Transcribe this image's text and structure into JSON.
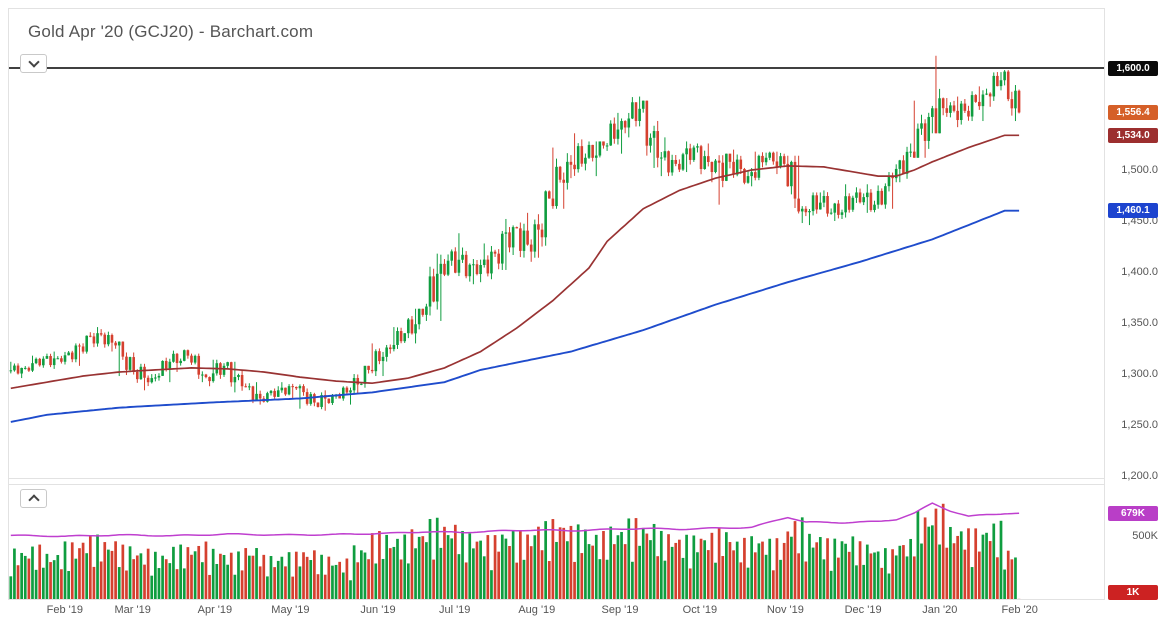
{
  "ui": {
    "title": "Gold Apr '20 (GCJ20) - Barchart.com",
    "icons": {
      "main_pane_toggle": "chevron-down",
      "volume_pane_toggle": "chevron-up"
    }
  },
  "chart_data": {
    "type": "candlestick",
    "title": "Gold Apr '20 (GCJ20) - Barchart.com",
    "symbol": "GCJ20",
    "last_price": 1556.4,
    "horizontal_line": 1600.0,
    "grid": false,
    "legend_position": "none",
    "price_axis_range": [
      1198,
      1657
    ],
    "volume_axis_range_k": [
      0,
      900
    ],
    "colors": {
      "up": "#0f9d3f",
      "down": "#d5402f",
      "horizontal_line": "#000000",
      "title_text": "#555555",
      "axis_text": "#555555"
    },
    "y_ticks": [
      {
        "label": "1,500.0",
        "value": 1500,
        "axis": "price"
      },
      {
        "label": "1,450.0",
        "value": 1450,
        "axis": "price"
      },
      {
        "label": "1,400.0",
        "value": 1400,
        "axis": "price"
      },
      {
        "label": "1,350.0",
        "value": 1350,
        "axis": "price"
      },
      {
        "label": "1,300.0",
        "value": 1300,
        "axis": "price"
      },
      {
        "label": "1,250.0",
        "value": 1250,
        "axis": "price"
      },
      {
        "label": "1,200.0",
        "value": 1200,
        "axis": "price"
      },
      {
        "label": "500K",
        "value": 500,
        "axis": "volume"
      }
    ],
    "badges": [
      {
        "name": "price-line-badge",
        "label": "1,600.0",
        "value": 1600,
        "axis": "price",
        "bg": "#0a0a0a"
      },
      {
        "name": "last-price-badge",
        "label": "1,556.4",
        "value": 1556.4,
        "axis": "price",
        "bg": "#d55f28"
      },
      {
        "name": "ma-fast-badge",
        "label": "1,534.0",
        "value": 1534,
        "axis": "price",
        "bg": "#9c2f2f"
      },
      {
        "name": "ma-slow-badge",
        "label": "1,460.1",
        "value": 1460.1,
        "axis": "price",
        "bg": "#1d44cf"
      },
      {
        "name": "open-interest-badge",
        "label": "679K",
        "value": 679,
        "axis": "volume",
        "bg": "#b93ec7"
      },
      {
        "name": "last-volume-badge",
        "label": "1K",
        "value": 1,
        "axis": "volume",
        "bg": "#cc2222"
      }
    ],
    "x_labels": [
      {
        "label": "Feb '19",
        "f": 0.051
      },
      {
        "label": "Mar '19",
        "f": 0.113
      },
      {
        "label": "Apr '19",
        "f": 0.188
      },
      {
        "label": "May '19",
        "f": 0.257
      },
      {
        "label": "Jun '19",
        "f": 0.337
      },
      {
        "label": "Jul '19",
        "f": 0.407
      },
      {
        "label": "Aug '19",
        "f": 0.482
      },
      {
        "label": "Sep '19",
        "f": 0.558
      },
      {
        "label": "Oct '19",
        "f": 0.631
      },
      {
        "label": "Nov '19",
        "f": 0.709
      },
      {
        "label": "Dec '19",
        "f": 0.78
      },
      {
        "label": "Jan '20",
        "f": 0.85
      },
      {
        "label": "Feb '20",
        "f": 0.923
      }
    ],
    "weekly_ohlcv_format": [
      "open",
      "high",
      "low",
      "close",
      "avg_daily_volume_k"
    ],
    "weekly_ohlcv": [
      [
        1303,
        1312,
        1296,
        1306,
        300
      ],
      [
        1306,
        1318,
        1302,
        1315,
        320
      ],
      [
        1315,
        1322,
        1305,
        1312,
        280
      ],
      [
        1312,
        1330,
        1308,
        1327,
        340
      ],
      [
        1327,
        1346,
        1320,
        1340,
        380
      ],
      [
        1340,
        1344,
        1322,
        1328,
        360
      ],
      [
        1328,
        1332,
        1298,
        1302,
        320
      ],
      [
        1302,
        1310,
        1284,
        1296,
        300
      ],
      [
        1296,
        1316,
        1292,
        1312,
        280
      ],
      [
        1312,
        1324,
        1302,
        1318,
        320
      ],
      [
        1318,
        1320,
        1292,
        1297,
        340
      ],
      [
        1297,
        1314,
        1288,
        1308,
        300
      ],
      [
        1308,
        1312,
        1282,
        1288,
        280
      ],
      [
        1288,
        1292,
        1270,
        1276,
        320
      ],
      [
        1276,
        1288,
        1272,
        1284,
        260
      ],
      [
        1284,
        1292,
        1276,
        1286,
        280
      ],
      [
        1286,
        1290,
        1266,
        1272,
        300
      ],
      [
        1272,
        1284,
        1264,
        1278,
        260
      ],
      [
        1278,
        1288,
        1270,
        1284,
        240
      ],
      [
        1284,
        1308,
        1280,
        1304,
        320
      ],
      [
        1304,
        1330,
        1298,
        1326,
        400
      ],
      [
        1326,
        1346,
        1320,
        1340,
        380
      ],
      [
        1340,
        1364,
        1330,
        1358,
        420
      ],
      [
        1358,
        1418,
        1352,
        1408,
        480
      ],
      [
        1408,
        1438,
        1396,
        1412,
        460
      ],
      [
        1412,
        1424,
        1388,
        1398,
        400
      ],
      [
        1398,
        1428,
        1390,
        1418,
        380
      ],
      [
        1418,
        1452,
        1402,
        1444,
        420
      ],
      [
        1444,
        1458,
        1410,
        1420,
        400
      ],
      [
        1420,
        1480,
        1414,
        1472,
        460
      ],
      [
        1472,
        1522,
        1462,
        1508,
        480
      ],
      [
        1508,
        1536,
        1492,
        1512,
        440
      ],
      [
        1512,
        1528,
        1494,
        1524,
        400
      ],
      [
        1524,
        1556,
        1516,
        1548,
        440
      ],
      [
        1548,
        1572,
        1532,
        1560,
        480
      ],
      [
        1560,
        1568,
        1502,
        1512,
        460
      ],
      [
        1512,
        1532,
        1494,
        1506,
        400
      ],
      [
        1506,
        1528,
        1498,
        1522,
        380
      ],
      [
        1522,
        1526,
        1488,
        1498,
        400
      ],
      [
        1498,
        1516,
        1466,
        1508,
        420
      ],
      [
        1508,
        1520,
        1486,
        1494,
        360
      ],
      [
        1494,
        1518,
        1484,
        1512,
        380
      ],
      [
        1512,
        1518,
        1496,
        1506,
        360
      ],
      [
        1506,
        1514,
        1448,
        1462,
        480
      ],
      [
        1462,
        1478,
        1446,
        1468,
        400
      ],
      [
        1468,
        1480,
        1450,
        1456,
        360
      ],
      [
        1456,
        1486,
        1452,
        1478,
        380
      ],
      [
        1478,
        1486,
        1458,
        1466,
        340
      ],
      [
        1466,
        1498,
        1462,
        1492,
        300
      ],
      [
        1492,
        1526,
        1488,
        1518,
        360
      ],
      [
        1518,
        1568,
        1512,
        1552,
        520
      ],
      [
        1552,
        1612,
        1536,
        1556,
        560
      ],
      [
        1556,
        1572,
        1542,
        1558,
        440
      ],
      [
        1558,
        1582,
        1548,
        1574,
        420
      ],
      [
        1574,
        1596,
        1562,
        1588,
        460
      ],
      [
        1588,
        1598,
        1548,
        1556.4,
        300
      ]
    ],
    "volume_last_k": 1,
    "ma_fast": {
      "name": "moving-average-fast",
      "color": "#993333",
      "last": 1534.0,
      "anchors": [
        [
          0,
          1286
        ],
        [
          2,
          1292
        ],
        [
          4,
          1298
        ],
        [
          6,
          1302
        ],
        [
          8,
          1304
        ],
        [
          10,
          1306
        ],
        [
          12,
          1305
        ],
        [
          14,
          1302
        ],
        [
          16,
          1297
        ],
        [
          18,
          1293
        ],
        [
          20,
          1291
        ],
        [
          22,
          1296
        ],
        [
          24,
          1306
        ],
        [
          26,
          1322
        ],
        [
          28,
          1345
        ],
        [
          30,
          1372
        ],
        [
          32,
          1404
        ],
        [
          33,
          1430
        ],
        [
          35,
          1462
        ],
        [
          37,
          1480
        ],
        [
          39,
          1492
        ],
        [
          41,
          1500
        ],
        [
          43,
          1504
        ],
        [
          45,
          1503
        ],
        [
          47,
          1497
        ],
        [
          48,
          1494
        ],
        [
          49,
          1494
        ],
        [
          50,
          1500
        ],
        [
          51,
          1508
        ],
        [
          52,
          1515
        ],
        [
          53,
          1522
        ],
        [
          54,
          1528
        ],
        [
          55,
          1534
        ]
      ]
    },
    "ma_slow": {
      "name": "moving-average-slow",
      "color": "#1f4ccc",
      "last": 1460.1,
      "anchors": [
        [
          0,
          1253
        ],
        [
          2,
          1260
        ],
        [
          6,
          1267
        ],
        [
          11,
          1272
        ],
        [
          16,
          1276
        ],
        [
          20,
          1282
        ],
        [
          24,
          1292
        ],
        [
          26,
          1304
        ],
        [
          31,
          1322
        ],
        [
          35,
          1343
        ],
        [
          39,
          1368
        ],
        [
          43,
          1390
        ],
        [
          47,
          1410
        ],
        [
          51,
          1432
        ],
        [
          53,
          1446
        ],
        [
          55,
          1460.1
        ]
      ]
    },
    "open_interest": {
      "name": "open-interest",
      "color": "#bf3fcf",
      "last_k": 679,
      "anchors": [
        [
          0,
          505
        ],
        [
          3,
          498
        ],
        [
          6,
          508
        ],
        [
          9,
          502
        ],
        [
          12,
          515
        ],
        [
          15,
          508
        ],
        [
          18,
          512
        ],
        [
          21,
          522
        ],
        [
          23,
          534
        ],
        [
          25,
          528
        ],
        [
          27,
          540
        ],
        [
          29,
          548
        ],
        [
          31,
          542
        ],
        [
          33,
          552
        ],
        [
          35,
          560
        ],
        [
          37,
          554
        ],
        [
          39,
          562
        ],
        [
          41,
          568
        ],
        [
          43,
          650
        ],
        [
          44,
          610
        ],
        [
          46,
          606
        ],
        [
          48,
          615
        ],
        [
          49,
          632
        ],
        [
          50,
          680
        ],
        [
          51,
          760
        ],
        [
          52,
          700
        ],
        [
          53,
          655
        ],
        [
          54,
          670
        ],
        [
          55,
          679
        ]
      ]
    }
  }
}
